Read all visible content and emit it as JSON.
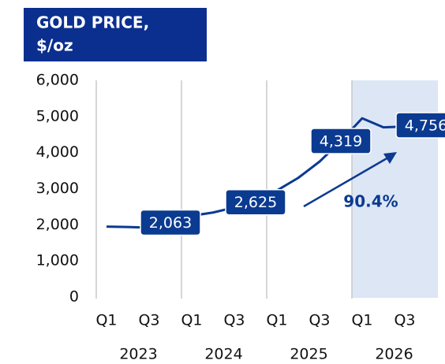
{
  "chart_data": {
    "type": "line",
    "title": "GOLD PRICE,",
    "subtitle": "$/oz",
    "categories": [
      "Q1",
      null,
      "Q3",
      null,
      "Q1",
      null,
      "Q3",
      null,
      "Q1",
      null,
      "Q3",
      null,
      "Q1",
      null,
      "Q3",
      null
    ],
    "years": [
      "2023",
      "2024",
      "2025",
      "2026"
    ],
    "series": [
      {
        "name": "Gold price",
        "color": "#0b3a91",
        "values": [
          1950,
          1940,
          1920,
          2063,
          2250,
          2340,
          2480,
          2625,
          2950,
          3300,
          3750,
          4319,
          4950,
          4700,
          4720,
          4756
        ],
        "value_labels": [
          null,
          null,
          null,
          "2,063",
          null,
          null,
          null,
          "2,625",
          null,
          null,
          null,
          "4,319",
          null,
          null,
          null,
          "4,756"
        ]
      }
    ],
    "annotation": "90.4%",
    "ylim": [
      0,
      6000
    ],
    "yticks": [
      0,
      {
        "value": 1000,
        "label": "1,000"
      },
      {
        "value": 2000,
        "label": "2,000"
      },
      {
        "value": 3000,
        "label": "3,000"
      },
      {
        "value": 4000,
        "label": "4,000"
      },
      {
        "value": 5000,
        "label": "5,000"
      },
      {
        "value": 6000,
        "label": "6,000"
      }
    ]
  }
}
